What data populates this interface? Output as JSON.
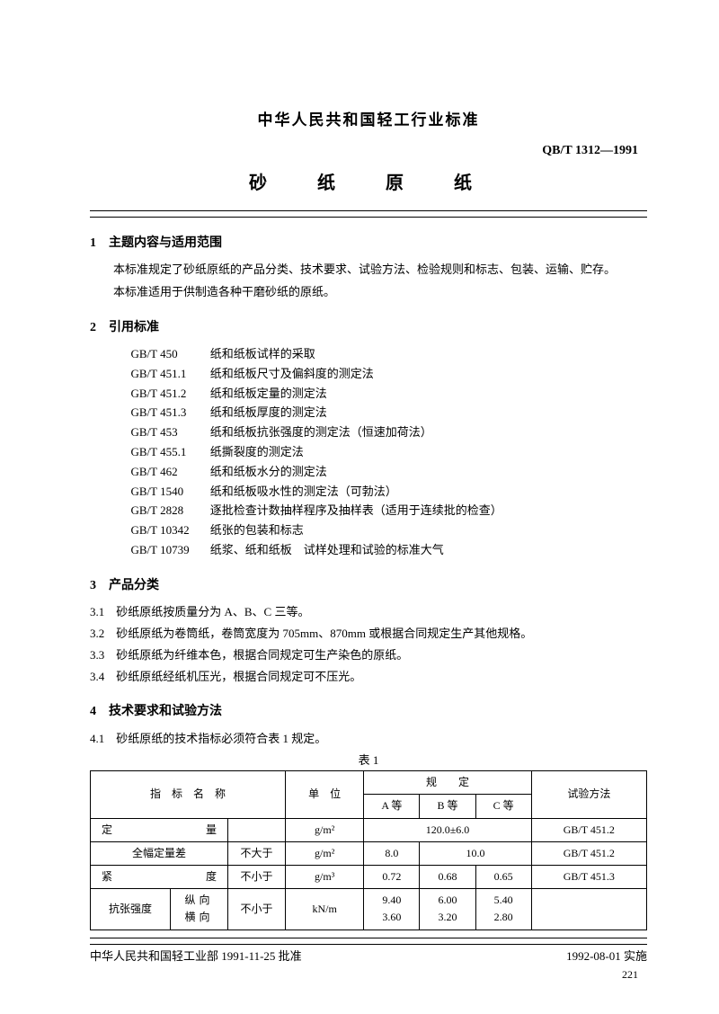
{
  "header": {
    "org_title": "中华人民共和国轻工行业标准",
    "standard_code": "QB/T 1312—1991",
    "doc_title": "砂　纸　原　纸"
  },
  "s1": {
    "heading": "1　主题内容与适用范围",
    "p1": "本标准规定了砂纸原纸的产品分类、技术要求、试验方法、检验规则和标志、包装、运输、贮存。",
    "p2": "本标准适用于供制造各种干磨砂纸的原纸。"
  },
  "s2": {
    "heading": "2　引用标准",
    "refs": [
      {
        "code": "GB/T 450",
        "title": "纸和纸板试样的采取"
      },
      {
        "code": "GB/T 451.1",
        "title": "纸和纸板尺寸及偏斜度的测定法"
      },
      {
        "code": "GB/T 451.2",
        "title": "纸和纸板定量的测定法"
      },
      {
        "code": "GB/T 451.3",
        "title": "纸和纸板厚度的测定法"
      },
      {
        "code": "GB/T 453",
        "title": "纸和纸板抗张强度的测定法（恒速加荷法）"
      },
      {
        "code": "GB/T 455.1",
        "title": "纸撕裂度的测定法"
      },
      {
        "code": "GB/T 462",
        "title": "纸和纸板水分的测定法"
      },
      {
        "code": "GB/T 1540",
        "title": "纸和纸板吸水性的测定法（可勃法）"
      },
      {
        "code": "GB/T 2828",
        "title": "逐批检查计数抽样程序及抽样表（适用于连续批的检查）"
      },
      {
        "code": "GB/T 10342",
        "title": "纸张的包装和标志"
      },
      {
        "code": "GB/T 10739",
        "title": "纸浆、纸和纸板　试样处理和试验的标准大气"
      }
    ]
  },
  "s3": {
    "heading": "3　产品分类",
    "items": [
      {
        "n": "3.1",
        "t": "砂纸原纸按质量分为 A、B、C 三等。"
      },
      {
        "n": "3.2",
        "t": "砂纸原纸为卷筒纸，卷筒宽度为 705mm、870mm 或根据合同规定生产其他规格。"
      },
      {
        "n": "3.3",
        "t": "砂纸原纸为纤维本色，根据合同规定可生产染色的原纸。"
      },
      {
        "n": "3.4",
        "t": "砂纸原纸经纸机压光，根据合同规定可不压光。"
      }
    ]
  },
  "s4": {
    "heading": "4　技术要求和试验方法",
    "p1": {
      "n": "4.1",
      "t": "砂纸原纸的技术指标必须符合表 1 规定。"
    },
    "tablecap": "表 1"
  },
  "table": {
    "head": {
      "name": "指　标　名　称",
      "unit": "单　位",
      "spec": "规　　定",
      "a": "A 等",
      "b": "B 等",
      "c": "C 等",
      "method": "试验方法"
    },
    "rows": [
      {
        "name_l": "定",
        "name_r": "量",
        "qual": "",
        "unit": "g/m²",
        "a": "",
        "b": "120.0±6.0",
        "c": "",
        "span": "ab c",
        "method": "GB/T 451.2"
      },
      {
        "name": "全幅定量差",
        "qual": "不大于",
        "unit": "g/m²",
        "a": "8.0",
        "bc": "10.0",
        "method": "GB/T 451.2"
      },
      {
        "name_l": "紧",
        "name_r": "度",
        "qual": "不小于",
        "unit": "g/m³",
        "a": "0.72",
        "b": "0.68",
        "c": "0.65",
        "method": "GB/T 451.3"
      },
      {
        "name": "抗张强度",
        "sub1": "纵向",
        "sub2": "横向",
        "qual": "不小于",
        "unit": "kN/m",
        "a1": "9.40",
        "b1": "6.00",
        "c1": "5.40",
        "a2": "3.60",
        "b2": "3.20",
        "c2": "2.80",
        "method": ""
      }
    ]
  },
  "footer": {
    "left": "中华人民共和国轻工业部 1991-11-25 批准",
    "right": "1992-08-01 实施",
    "pagenum": "221"
  }
}
